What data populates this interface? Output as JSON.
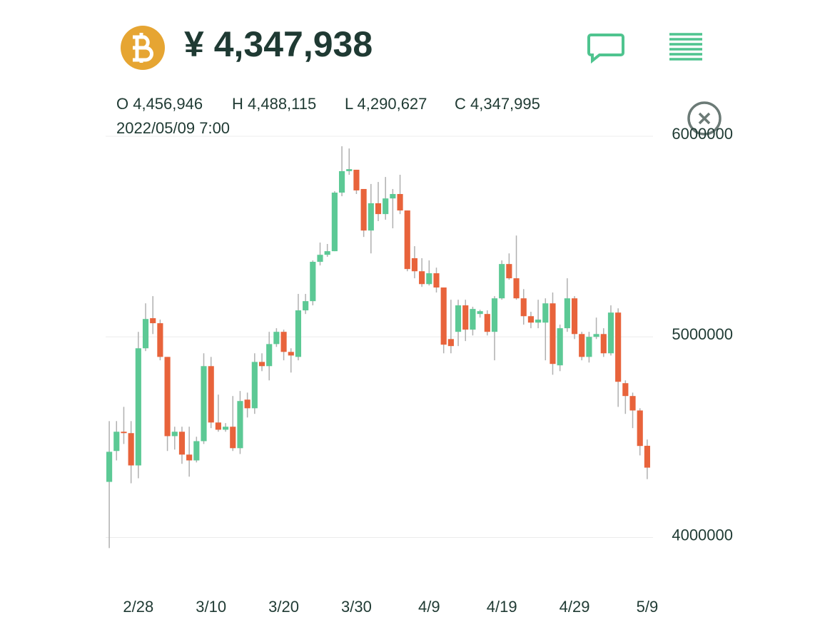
{
  "header": {
    "price": "¥ 4,347,938",
    "ohlc": [
      "O 4,456,946",
      "H 4,488,115",
      "L 4,290,627",
      "C 4,347,995"
    ],
    "datetime": "2022/05/09 7:00"
  },
  "chart_data": {
    "type": "candlestick",
    "categories": [
      null,
      null,
      null,
      null,
      "2/28",
      null,
      null,
      null,
      null,
      null,
      null,
      null,
      null,
      null,
      "3/10",
      null,
      null,
      null,
      null,
      null,
      null,
      null,
      null,
      null,
      "3/20",
      null,
      null,
      null,
      null,
      null,
      null,
      null,
      null,
      null,
      "3/30",
      null,
      null,
      null,
      null,
      null,
      null,
      null,
      null,
      null,
      "4/9",
      null,
      null,
      null,
      null,
      null,
      null,
      null,
      null,
      null,
      "4/19",
      null,
      null,
      null,
      null,
      null,
      null,
      null,
      null,
      null,
      "4/29",
      null,
      null,
      null,
      null,
      null,
      null,
      null,
      null,
      null,
      "5/9"
    ],
    "open": [
      4277000,
      4431000,
      4527000,
      4520000,
      4359000,
      4943000,
      5093000,
      5068000,
      4900000,
      4505000,
      4527000,
      4413000,
      4384000,
      4480000,
      4854000,
      4573000,
      4537000,
      4552000,
      4445000,
      4687000,
      4644000,
      4875000,
      4854000,
      4964000,
      5025000,
      4925000,
      4900000,
      5132000,
      5178000,
      5374000,
      5409000,
      5427000,
      5719000,
      5826000,
      5833000,
      5737000,
      5530000,
      5666000,
      5612000,
      5690000,
      5712000,
      5630000,
      5392000,
      5327000,
      5263000,
      5317000,
      5246000,
      4989000,
      5025000,
      5157000,
      5036000,
      5114000,
      5114000,
      5025000,
      5192000,
      5363000,
      5292000,
      5192000,
      5103000,
      5071000,
      5071000,
      5167000,
      4858000,
      5043000,
      5192000,
      5014000,
      4900000,
      5000000,
      5014000,
      4918000,
      5121000,
      4769000,
      4705000,
      4633000,
      4456946
    ],
    "high": [
      4580000,
      4580000,
      4651000,
      4580000,
      5025000,
      5167000,
      5203000,
      5086000,
      4900000,
      4552000,
      4552000,
      4552000,
      4502000,
      4918000,
      4900000,
      4712000,
      4570000,
      4705000,
      4730000,
      4722000,
      4918000,
      4918000,
      5025000,
      5043000,
      5036000,
      4943000,
      5214000,
      5214000,
      5381000,
      5470000,
      5463000,
      5726000,
      5950000,
      5939000,
      5833000,
      5737000,
      5762000,
      5772000,
      5797000,
      5737000,
      5808000,
      5630000,
      5452000,
      5392000,
      5381000,
      5345000,
      5246000,
      5185000,
      5185000,
      5185000,
      5150000,
      5135000,
      5132000,
      5203000,
      5381000,
      5416000,
      5505000,
      5238000,
      5125000,
      5185000,
      5192000,
      5221000,
      5061000,
      5292000,
      5203000,
      5025000,
      5025000,
      5096000,
      5043000,
      5157000,
      5142000,
      4783000,
      4722000,
      4644000,
      4488115
    ],
    "low": [
      3947000,
      4384000,
      4466000,
      4270000,
      4295000,
      4929000,
      5014000,
      4883000,
      4431000,
      4438000,
      4367000,
      4303000,
      4374000,
      4466000,
      4545000,
      4527000,
      4527000,
      4431000,
      4416000,
      4598000,
      4616000,
      4829000,
      4783000,
      4950000,
      4883000,
      4822000,
      4883000,
      5114000,
      5157000,
      5356000,
      5399000,
      5427000,
      5701000,
      5808000,
      5712000,
      5498000,
      5416000,
      5577000,
      5584000,
      5541000,
      5612000,
      5327000,
      5292000,
      5249000,
      5256000,
      5221000,
      4918000,
      4918000,
      4954000,
      4979000,
      5007000,
      5096000,
      5007000,
      4883000,
      5185000,
      5285000,
      5185000,
      5061000,
      5043000,
      5043000,
      4883000,
      4811000,
      4829000,
      5025000,
      4989000,
      4883000,
      4872000,
      4989000,
      4900000,
      4907000,
      4651000,
      4616000,
      4545000,
      4409000,
      4290627
    ],
    "close": [
      4427000,
      4527000,
      4520000,
      4359000,
      4943000,
      5089000,
      5068000,
      4900000,
      4505000,
      4527000,
      4413000,
      4384000,
      4480000,
      4854000,
      4573000,
      4537000,
      4552000,
      4445000,
      4680000,
      4644000,
      4875000,
      4854000,
      4964000,
      5025000,
      4925000,
      4907000,
      5132000,
      5178000,
      5374000,
      5409000,
      5427000,
      5719000,
      5826000,
      5836000,
      5730000,
      5530000,
      5666000,
      5612000,
      5690000,
      5712000,
      5630000,
      5338000,
      5327000,
      5263000,
      5317000,
      5246000,
      4961000,
      4954000,
      5157000,
      5036000,
      5139000,
      5128000,
      5025000,
      5192000,
      5363000,
      5292000,
      5192000,
      5103000,
      5071000,
      5086000,
      5167000,
      4865000,
      5043000,
      5192000,
      5014000,
      4900000,
      5000000,
      5014000,
      4918000,
      5121000,
      4776000,
      4705000,
      4633000,
      4456000,
      4347995
    ],
    "up_color": "#5cc995",
    "down_color": "#e8633b",
    "wick_color": "#b0b0b0",
    "ylim": [
      3870000,
      6000000
    ],
    "yticks": [
      4000000,
      5000000,
      6000000
    ],
    "grid": true
  }
}
